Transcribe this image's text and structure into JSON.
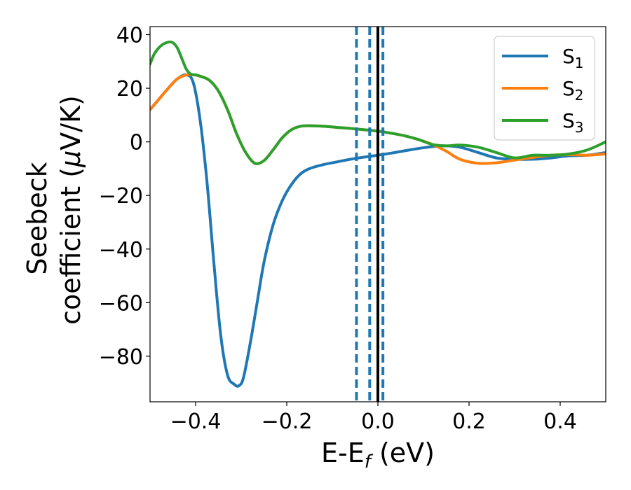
{
  "chart_data": {
    "type": "line",
    "xlabel": {
      "main": "E-E",
      "sub": "f",
      "unit": " (eV)"
    },
    "ylabel": {
      "line1": "Seebeck",
      "line2": "coefficient  (",
      "mu": "μ",
      "line2_end": "V/K)"
    },
    "xlim": [
      -0.5,
      0.5
    ],
    "ylim": [
      -97,
      43
    ],
    "xticks": [
      -0.4,
      -0.2,
      0.0,
      0.2,
      0.4
    ],
    "xtick_labels": [
      "−0.4",
      "−0.2",
      "0.0",
      "0.2",
      "0.4"
    ],
    "yticks": [
      40,
      20,
      0,
      -20,
      -40,
      -60,
      -80
    ],
    "ytick_labels": [
      "40",
      "20",
      "0",
      "−20",
      "−40",
      "−60",
      "−80"
    ],
    "legend_position": "top-right",
    "series": [
      {
        "name": "S",
        "sub": "1",
        "color": "#1f77b4",
        "x": [
          -0.5,
          -0.48,
          -0.46,
          -0.44,
          -0.42,
          -0.405,
          -0.39,
          -0.375,
          -0.36,
          -0.345,
          -0.33,
          -0.315,
          -0.305,
          -0.295,
          -0.28,
          -0.265,
          -0.25,
          -0.23,
          -0.21,
          -0.19,
          -0.17,
          -0.15,
          -0.12,
          -0.09,
          -0.06,
          -0.03,
          0.0,
          0.03,
          0.06,
          0.1,
          0.14,
          0.18,
          0.22,
          0.26,
          0.3,
          0.34,
          0.38,
          0.42,
          0.46,
          0.5
        ],
        "y": [
          12,
          16,
          20,
          23.5,
          25,
          22,
          8,
          -15,
          -45,
          -72,
          -87,
          -90.5,
          -91,
          -88,
          -75,
          -60,
          -45,
          -31,
          -22,
          -16,
          -12,
          -10,
          -8.5,
          -7.5,
          -6.5,
          -5.7,
          -5,
          -4.2,
          -3.3,
          -2.2,
          -1.5,
          -2,
          -4,
          -6,
          -6.5,
          -6.5,
          -6,
          -5.2,
          -5,
          -4
        ]
      },
      {
        "name": "S",
        "sub": "2",
        "color": "#ff7f0e",
        "x": [
          -0.5,
          -0.48,
          -0.46,
          -0.44,
          -0.42,
          -0.405,
          -0.39,
          -0.37,
          -0.35,
          -0.33,
          -0.31,
          -0.29,
          -0.27,
          -0.25,
          -0.23,
          -0.21,
          -0.19,
          -0.17,
          -0.15,
          -0.12,
          -0.09,
          -0.06,
          -0.03,
          0.0,
          0.03,
          0.06,
          0.09,
          0.12,
          0.15,
          0.18,
          0.22,
          0.26,
          0.3,
          0.34,
          0.38,
          0.42,
          0.46,
          0.5
        ],
        "y": [
          12,
          16,
          20,
          23.5,
          25,
          25,
          24.5,
          23,
          19,
          12,
          3,
          -4,
          -8,
          -7,
          -3,
          1.5,
          4.5,
          5.8,
          6,
          5.8,
          5.4,
          5,
          4.5,
          4,
          3.2,
          2.2,
          0.8,
          -1,
          -3.5,
          -6.5,
          -8,
          -7.8,
          -6.8,
          -5.8,
          -5,
          -4.8,
          -5,
          -4.5
        ]
      },
      {
        "name": "S",
        "sub": "3",
        "color": "#2ca02c",
        "x": [
          -0.5,
          -0.49,
          -0.475,
          -0.46,
          -0.45,
          -0.44,
          -0.43,
          -0.42,
          -0.41,
          -0.4,
          -0.39,
          -0.37,
          -0.35,
          -0.33,
          -0.31,
          -0.29,
          -0.27,
          -0.25,
          -0.23,
          -0.21,
          -0.19,
          -0.17,
          -0.15,
          -0.12,
          -0.09,
          -0.06,
          -0.03,
          0.0,
          0.03,
          0.06,
          0.09,
          0.12,
          0.15,
          0.18,
          0.22,
          0.26,
          0.3,
          0.34,
          0.38,
          0.42,
          0.46,
          0.5
        ],
        "y": [
          29,
          33,
          36,
          37.2,
          37,
          35,
          31,
          27,
          25.2,
          25,
          24.5,
          23,
          19,
          12,
          3,
          -4,
          -8,
          -7,
          -3,
          1.5,
          4.5,
          5.8,
          6,
          5.8,
          5.4,
          5,
          4.5,
          4,
          3.2,
          2.2,
          0.8,
          -1,
          -1.5,
          -1.2,
          -2,
          -4,
          -6,
          -5,
          -5,
          -4.5,
          -3,
          0
        ]
      }
    ],
    "vlines": [
      {
        "x": -0.047,
        "style": "dashed",
        "color": "#1f77b4"
      },
      {
        "x": -0.018,
        "style": "dashed",
        "color": "#1f77b4"
      },
      {
        "x": 0.011,
        "style": "dashed",
        "color": "#1f77b4"
      },
      {
        "x": 0.0,
        "style": "solid",
        "color": "#000000"
      }
    ]
  }
}
